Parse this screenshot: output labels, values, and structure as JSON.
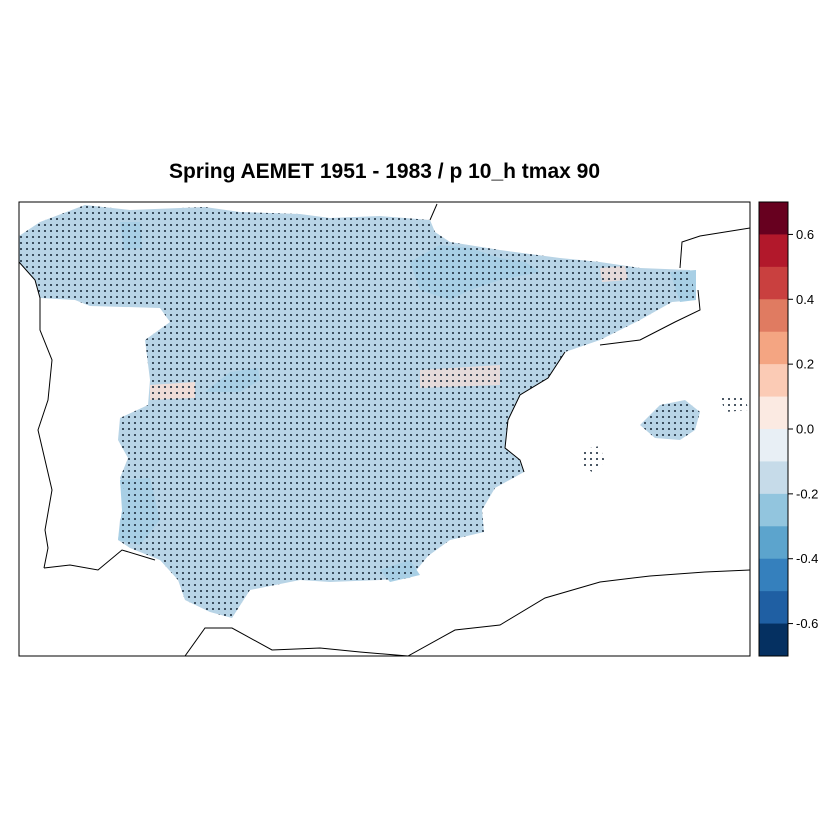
{
  "map": {
    "title": "Spring AEMET 1951 - 1983 / p 10_h tmax 90"
  },
  "colorbar": {
    "ticks": [
      "0.6",
      "0.4",
      "0.2",
      "0.0",
      "-0.2",
      "-0.4",
      "-0.6"
    ],
    "levels": [
      0.7,
      0.6,
      0.5,
      0.4,
      0.3,
      0.2,
      0.1,
      0.0,
      -0.1,
      -0.2,
      -0.3,
      -0.4,
      -0.5,
      -0.6,
      -0.7
    ],
    "colors": [
      "#67001f",
      "#b2182b",
      "#c9403f",
      "#e07b61",
      "#f4a582",
      "#fbcbb5",
      "#fbeae2",
      "#e8eff5",
      "#c6dbe9",
      "#92c5de",
      "#5ca4cd",
      "#3580bd",
      "#1f5fa3",
      "#053061"
    ]
  },
  "legend_colors": {
    "dominant_field": "#b8d4e6",
    "light_blue_patch": "#a8cfe5",
    "slightly_warm_patch": "#f8ddd4",
    "significance_dots": "#1a2a3a"
  }
}
